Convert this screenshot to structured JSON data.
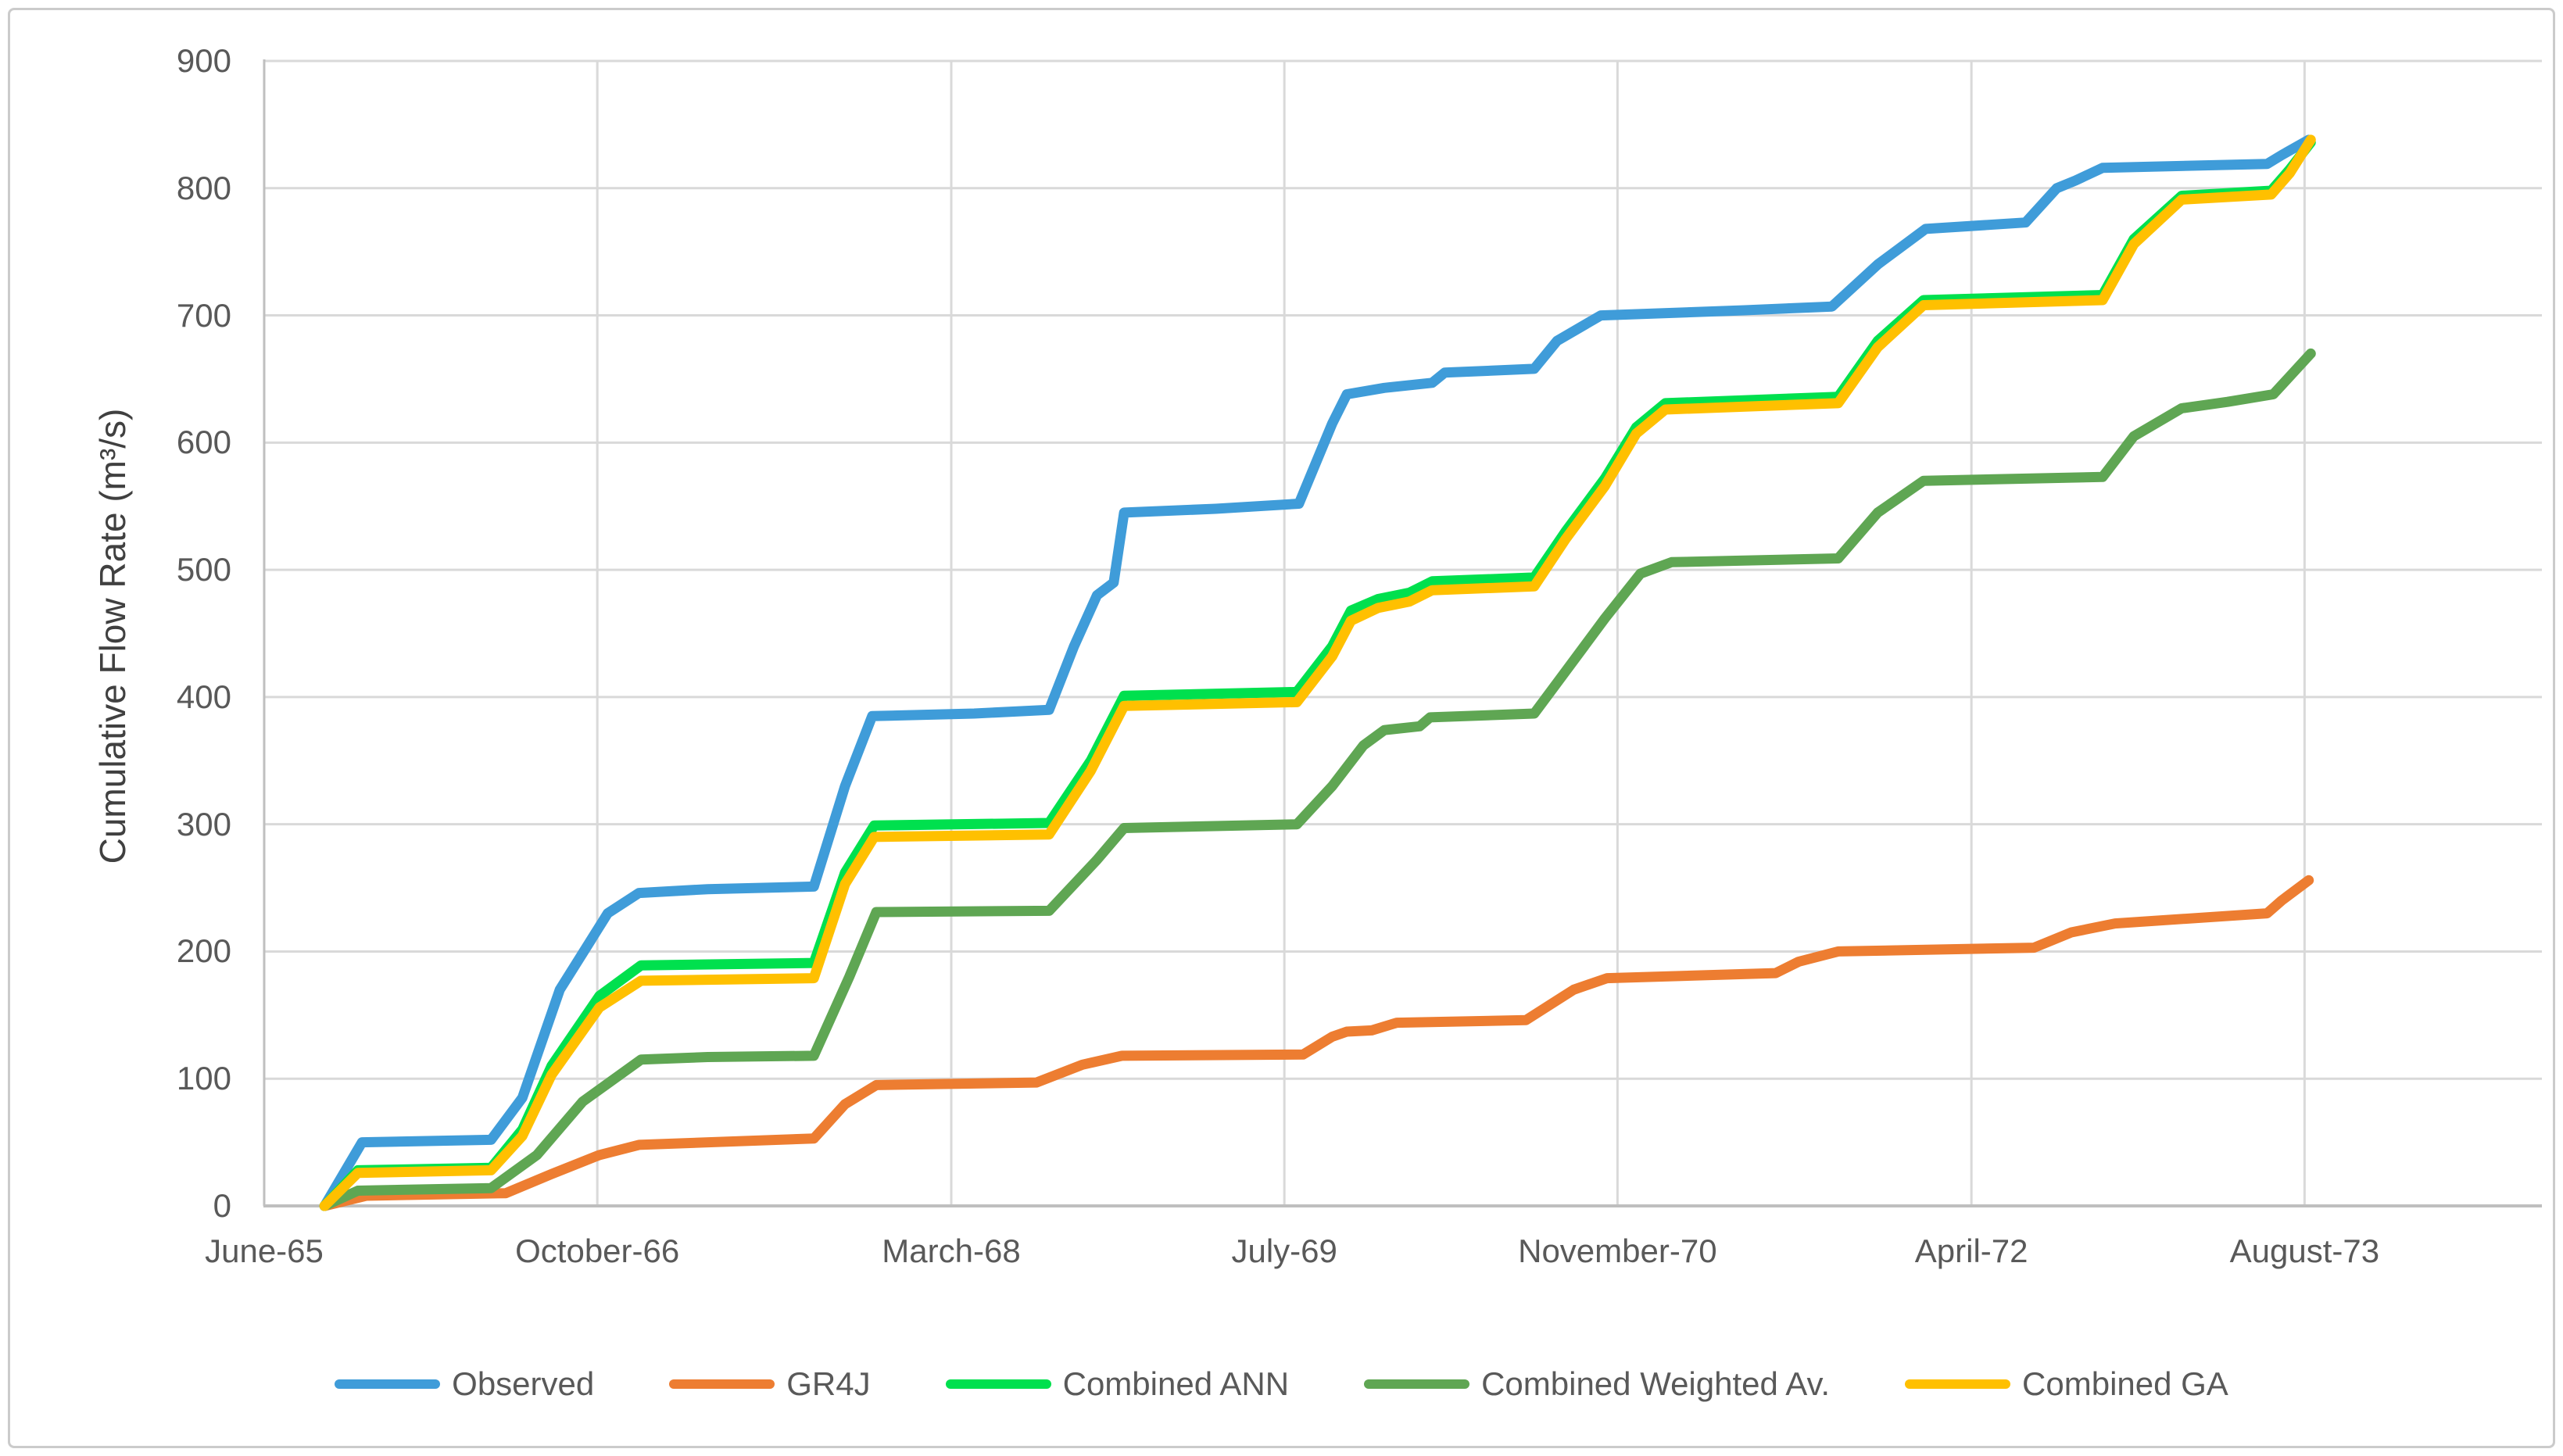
{
  "figure": {
    "background": "#ffffff",
    "border_color": "#cbcbcb",
    "gridline_color": "#d9d9d9",
    "axis_line_color": "#bfbfbf",
    "tick_label_color": "#595959",
    "axis_title_color": "#404040"
  },
  "chart_data": {
    "type": "line",
    "title": "",
    "xlabel": "",
    "ylabel": "Cumulative Flow Rate (m³/s)",
    "ylim": [
      0,
      900
    ],
    "yticks": [
      0,
      100,
      200,
      300,
      400,
      500,
      600,
      700,
      800,
      900
    ],
    "grid": true,
    "legend_position": "bottom",
    "x_axis": {
      "unit": "months since June-1965",
      "max": 109.4,
      "tick_positions": [
        0,
        16,
        33,
        49,
        65,
        82,
        98
      ],
      "tick_labels": [
        "June-65",
        "October-66",
        "March-68",
        "July-69",
        "November-70",
        "April-72",
        "August-73"
      ]
    },
    "series": [
      {
        "name": "Observed",
        "color": "#3f9cd9",
        "points": [
          [
            2.9,
            0
          ],
          [
            4.7,
            50
          ],
          [
            10.9,
            52
          ],
          [
            12.4,
            85
          ],
          [
            14.2,
            170
          ],
          [
            16.5,
            230
          ],
          [
            18,
            246
          ],
          [
            21.3,
            249
          ],
          [
            26.4,
            251
          ],
          [
            27.9,
            330
          ],
          [
            29.2,
            385
          ],
          [
            34.1,
            387
          ],
          [
            37.7,
            390
          ],
          [
            38.9,
            440
          ],
          [
            40,
            480
          ],
          [
            40.8,
            490
          ],
          [
            41.3,
            545
          ],
          [
            45.7,
            548
          ],
          [
            49.7,
            552
          ],
          [
            51.3,
            615
          ],
          [
            52,
            638
          ],
          [
            53.8,
            643
          ],
          [
            56.1,
            647
          ],
          [
            56.7,
            655
          ],
          [
            61,
            658
          ],
          [
            62.1,
            680
          ],
          [
            64.2,
            700
          ],
          [
            71.1,
            704
          ],
          [
            75.3,
            707
          ],
          [
            77.5,
            740
          ],
          [
            79.8,
            768
          ],
          [
            84.6,
            773
          ],
          [
            86.1,
            800
          ],
          [
            87,
            806
          ],
          [
            88.3,
            816
          ],
          [
            96.2,
            819
          ],
          [
            96.9,
            826
          ],
          [
            98.2,
            838
          ]
        ]
      },
      {
        "name": "GR4J",
        "color": "#ed7d31",
        "points": [
          [
            2.9,
            0
          ],
          [
            4.9,
            8
          ],
          [
            11.6,
            10
          ],
          [
            13.8,
            25
          ],
          [
            16.1,
            40
          ],
          [
            18,
            48
          ],
          [
            26.4,
            53
          ],
          [
            27.9,
            80
          ],
          [
            29.4,
            95
          ],
          [
            37.1,
            97
          ],
          [
            39.3,
            111
          ],
          [
            41.2,
            118
          ],
          [
            49.9,
            119
          ],
          [
            51.3,
            133
          ],
          [
            52,
            137
          ],
          [
            53.2,
            138
          ],
          [
            54.4,
            144
          ],
          [
            60.6,
            146
          ],
          [
            62.9,
            170
          ],
          [
            64.5,
            179
          ],
          [
            72.6,
            183
          ],
          [
            73.7,
            192
          ],
          [
            75.6,
            200
          ],
          [
            85,
            203
          ],
          [
            86.8,
            215
          ],
          [
            88.9,
            222
          ],
          [
            96.2,
            230
          ],
          [
            96.9,
            240
          ],
          [
            98.2,
            256
          ]
        ]
      },
      {
        "name": "Combined ANN",
        "color": "#00e04e",
        "points": [
          [
            2.9,
            0
          ],
          [
            4.5,
            28
          ],
          [
            10.9,
            30
          ],
          [
            12.4,
            60
          ],
          [
            13.8,
            110
          ],
          [
            16.1,
            165
          ],
          [
            18.1,
            189
          ],
          [
            26.4,
            191
          ],
          [
            27.9,
            262
          ],
          [
            29.3,
            299
          ],
          [
            37.7,
            301
          ],
          [
            39.7,
            350
          ],
          [
            41.3,
            401
          ],
          [
            49.6,
            404
          ],
          [
            51.3,
            440
          ],
          [
            52.2,
            468
          ],
          [
            53.5,
            477
          ],
          [
            55,
            482
          ],
          [
            56.1,
            491
          ],
          [
            61,
            494
          ],
          [
            62.5,
            530
          ],
          [
            64.4,
            572
          ],
          [
            65.9,
            612
          ],
          [
            67.3,
            631
          ],
          [
            75.6,
            636
          ],
          [
            77.5,
            680
          ],
          [
            79.7,
            712
          ],
          [
            88.3,
            716
          ],
          [
            89.8,
            760
          ],
          [
            92.1,
            794
          ],
          [
            96.4,
            798
          ],
          [
            97.3,
            815
          ],
          [
            98.3,
            836
          ]
        ]
      },
      {
        "name": "Combined Weighted Av.",
        "color": "#5fa653",
        "points": [
          [
            2.9,
            0
          ],
          [
            4.5,
            12
          ],
          [
            10.9,
            14
          ],
          [
            13.1,
            40
          ],
          [
            15.3,
            82
          ],
          [
            18.1,
            115
          ],
          [
            21.3,
            117
          ],
          [
            26.4,
            118
          ],
          [
            28.1,
            180
          ],
          [
            29.4,
            231
          ],
          [
            37.7,
            232
          ],
          [
            40,
            272
          ],
          [
            41.3,
            297
          ],
          [
            49.6,
            300
          ],
          [
            51.3,
            330
          ],
          [
            52.8,
            362
          ],
          [
            53.8,
            374
          ],
          [
            55.5,
            377
          ],
          [
            56,
            384
          ],
          [
            61,
            387
          ],
          [
            62.5,
            420
          ],
          [
            64.4,
            462
          ],
          [
            66.1,
            497
          ],
          [
            67.6,
            506
          ],
          [
            75.6,
            509
          ],
          [
            77.5,
            545
          ],
          [
            79.7,
            570
          ],
          [
            88.3,
            573
          ],
          [
            89.8,
            605
          ],
          [
            92.1,
            627
          ],
          [
            94.3,
            632
          ],
          [
            96.5,
            638
          ],
          [
            98.3,
            670
          ]
        ]
      },
      {
        "name": "Combined GA",
        "color": "#ffc000",
        "points": [
          [
            2.9,
            0
          ],
          [
            4.5,
            26
          ],
          [
            10.9,
            28
          ],
          [
            12.4,
            55
          ],
          [
            13.8,
            103
          ],
          [
            16.1,
            156
          ],
          [
            18.1,
            177
          ],
          [
            26.4,
            179
          ],
          [
            27.9,
            253
          ],
          [
            29.3,
            290
          ],
          [
            37.7,
            292
          ],
          [
            39.7,
            342
          ],
          [
            41.3,
            393
          ],
          [
            49.6,
            396
          ],
          [
            51.3,
            432
          ],
          [
            52.2,
            460
          ],
          [
            53.5,
            470
          ],
          [
            55,
            475
          ],
          [
            56.1,
            484
          ],
          [
            61,
            487
          ],
          [
            62.5,
            524
          ],
          [
            64.4,
            566
          ],
          [
            65.9,
            607
          ],
          [
            67.3,
            626
          ],
          [
            75.6,
            631
          ],
          [
            77.5,
            675
          ],
          [
            79.7,
            708
          ],
          [
            88.3,
            712
          ],
          [
            89.8,
            756
          ],
          [
            92.1,
            791
          ],
          [
            96.4,
            795
          ],
          [
            97.3,
            812
          ],
          [
            98.3,
            838
          ]
        ]
      }
    ]
  }
}
